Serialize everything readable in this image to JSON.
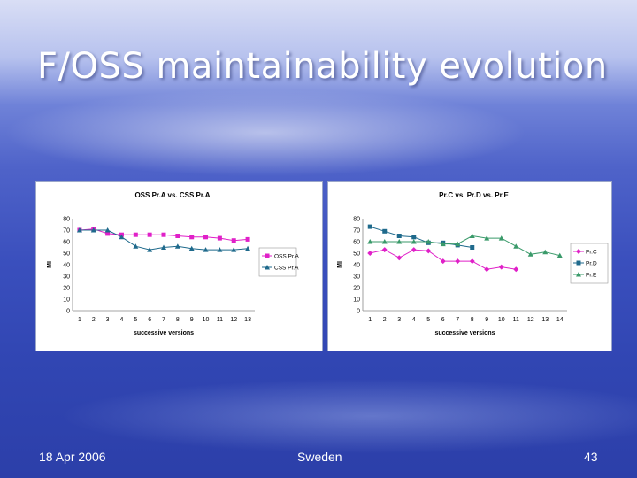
{
  "slide": {
    "title": "F/OSS maintainability evolution",
    "footer_date": "18 Apr 2006",
    "footer_location": "Sweden",
    "page_number": "43"
  },
  "chart_data": [
    {
      "type": "line",
      "title": "OSS Pr.A vs. CSS Pr.A",
      "xlabel": "successive versions",
      "ylabel": "MI",
      "ylim": [
        0,
        80
      ],
      "yticks": [
        0,
        10,
        20,
        30,
        40,
        50,
        60,
        70,
        80
      ],
      "categories": [
        "1",
        "2",
        "3",
        "4",
        "5",
        "6",
        "7",
        "8",
        "9",
        "10",
        "11",
        "12",
        "13"
      ],
      "legend_position": "right",
      "series": [
        {
          "name": "OSS Pr.A",
          "color": "#e020c8",
          "marker": "square",
          "values": [
            70,
            71,
            67,
            66,
            66,
            66,
            66,
            65,
            64,
            64,
            63,
            61,
            62
          ]
        },
        {
          "name": "CSS Pr.A",
          "color": "#1f6a8c",
          "marker": "triangle",
          "values": [
            70,
            70,
            70,
            64,
            56,
            53,
            55,
            56,
            54,
            53,
            53,
            53,
            54
          ]
        }
      ]
    },
    {
      "type": "line",
      "title": "Pr.C vs. Pr.D vs. Pr.E",
      "xlabel": "successive versions",
      "ylabel": "MI",
      "ylim": [
        0,
        80
      ],
      "yticks": [
        0,
        10,
        20,
        30,
        40,
        50,
        60,
        70,
        80
      ],
      "categories": [
        "1",
        "2",
        "3",
        "4",
        "5",
        "6",
        "7",
        "8",
        "9",
        "10",
        "11",
        "12",
        "13",
        "14"
      ],
      "legend_position": "right",
      "series": [
        {
          "name": "Pr.C",
          "color": "#e020c8",
          "marker": "diamond",
          "values": [
            50,
            53,
            46,
            53,
            52,
            43,
            43,
            43,
            36,
            38,
            36,
            null,
            null,
            null
          ]
        },
        {
          "name": "Pr.D",
          "color": "#1f6a8c",
          "marker": "square",
          "values": [
            73,
            69,
            65,
            64,
            59,
            59,
            57,
            55,
            null,
            null,
            null,
            null,
            null,
            null
          ]
        },
        {
          "name": "Pr.E",
          "color": "#3a9a6a",
          "marker": "triangle",
          "values": [
            60,
            60,
            60,
            60,
            60,
            58,
            58,
            65,
            63,
            63,
            56,
            49,
            51,
            48
          ]
        }
      ]
    }
  ]
}
